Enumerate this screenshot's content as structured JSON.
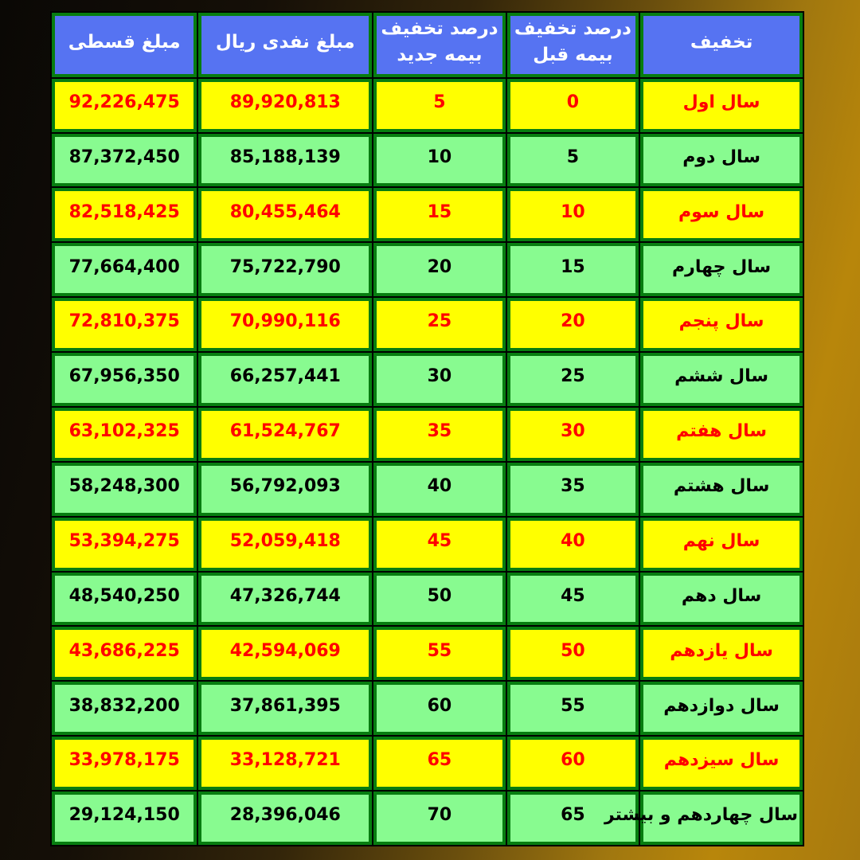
{
  "page": {
    "background": {
      "left_color": "#0a0805",
      "right_color": "#b8860b"
    }
  },
  "table": {
    "direction": "rtl",
    "border_color": "#077d10",
    "header": {
      "bg_color": "#5673f2",
      "text_color": "#ffffff",
      "columns": [
        {
          "id": "year",
          "label": "تخفیف",
          "width_pct": 21.8
        },
        {
          "id": "prev_discount",
          "label": "درصد تخفیف بیمه قبل",
          "width_pct": 17.7
        },
        {
          "id": "new_discount",
          "label": "درصد تخفیف بیمه جدید",
          "width_pct": 17.7
        },
        {
          "id": "cash_amount",
          "label": "مبلغ نفدی ریال",
          "width_pct": 23.3
        },
        {
          "id": "installment_amount",
          "label": "مبلغ قسطی",
          "width_pct": 19.5
        }
      ]
    },
    "row_styles": {
      "yellow": {
        "bg": "#ffff00",
        "text": "#ff0000"
      },
      "green": {
        "bg": "#88fb90",
        "text": "#000000"
      }
    },
    "rows": [
      {
        "year": "سال اول",
        "prev_discount": "0",
        "new_discount": "5",
        "cash_amount": "89,920,813",
        "installment_amount": "92,226,475",
        "style": "yellow"
      },
      {
        "year": "سال دوم",
        "prev_discount": "5",
        "new_discount": "10",
        "cash_amount": "85,188,139",
        "installment_amount": "87,372,450",
        "style": "green"
      },
      {
        "year": "سال سوم",
        "prev_discount": "10",
        "new_discount": "15",
        "cash_amount": "80,455,464",
        "installment_amount": "82,518,425",
        "style": "yellow"
      },
      {
        "year": "سال چهارم",
        "prev_discount": "15",
        "new_discount": "20",
        "cash_amount": "75,722,790",
        "installment_amount": "77,664,400",
        "style": "green"
      },
      {
        "year": "سال پنجم",
        "prev_discount": "20",
        "new_discount": "25",
        "cash_amount": "70,990,116",
        "installment_amount": "72,810,375",
        "style": "yellow"
      },
      {
        "year": "سال ششم",
        "prev_discount": "25",
        "new_discount": "30",
        "cash_amount": "66,257,441",
        "installment_amount": "67,956,350",
        "style": "green"
      },
      {
        "year": "سال هفتم",
        "prev_discount": "30",
        "new_discount": "35",
        "cash_amount": "61,524,767",
        "installment_amount": "63,102,325",
        "style": "yellow"
      },
      {
        "year": "سال هشتم",
        "prev_discount": "35",
        "new_discount": "40",
        "cash_amount": "56,792,093",
        "installment_amount": "58,248,300",
        "style": "green"
      },
      {
        "year": "سال نهم",
        "prev_discount": "40",
        "new_discount": "45",
        "cash_amount": "52,059,418",
        "installment_amount": "53,394,275",
        "style": "yellow"
      },
      {
        "year": "سال دهم",
        "prev_discount": "45",
        "new_discount": "50",
        "cash_amount": "47,326,744",
        "installment_amount": "48,540,250",
        "style": "green"
      },
      {
        "year": "سال یازدهم",
        "prev_discount": "50",
        "new_discount": "55",
        "cash_amount": "42,594,069",
        "installment_amount": "43,686,225",
        "style": "yellow"
      },
      {
        "year": "سال دوازدهم",
        "prev_discount": "55",
        "new_discount": "60",
        "cash_amount": "37,861,395",
        "installment_amount": "38,832,200",
        "style": "green"
      },
      {
        "year": "سال سیزدهم",
        "prev_discount": "60",
        "new_discount": "65",
        "cash_amount": "33,128,721",
        "installment_amount": "33,978,175",
        "style": "yellow"
      },
      {
        "year": "سال چهاردهم و بیشتر",
        "prev_discount": "65",
        "new_discount": "70",
        "cash_amount": "28,396,046",
        "installment_amount": "29,124,150",
        "style": "green"
      }
    ]
  }
}
